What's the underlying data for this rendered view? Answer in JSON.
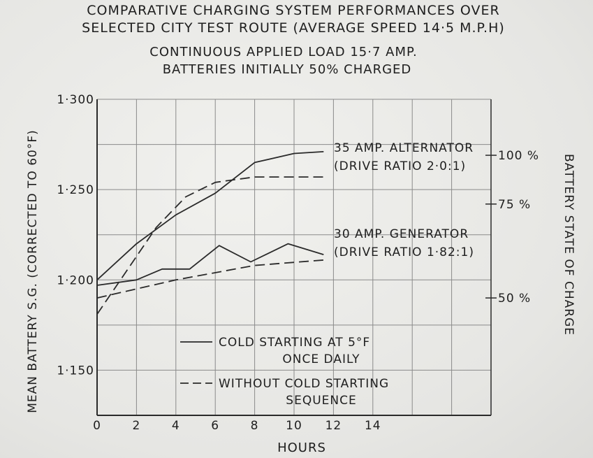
{
  "chart_data": {
    "type": "line",
    "title": [
      "COMPARATIVE CHARGING SYSTEM PERFORMANCES OVER",
      "SELECTED CITY TEST ROUTE (AVERAGE SPEED 14·5 M.P.H)"
    ],
    "subtitle": [
      "CONTINUOUS APPLIED LOAD 15·7 AMP.",
      "BATTERIES INITIALLY 50% CHARGED"
    ],
    "xlabel": "HOURS",
    "ylabel": "MEAN BATTERY S.G. (CORRECTED TO 60°F)",
    "y2label": "BATTERY STATE OF CHARGE",
    "xlim": [
      0,
      20
    ],
    "ylim": [
      1.125,
      1.3
    ],
    "x_ticks": [
      "0",
      "2",
      "4",
      "6",
      "8",
      "10",
      "12",
      "14"
    ],
    "x_tick_values": [
      0,
      2,
      4,
      6,
      8,
      10,
      12,
      14
    ],
    "y_ticks": [
      "1·300",
      "1·250",
      "1·200",
      "1·150"
    ],
    "y_tick_values": [
      1.3,
      1.25,
      1.2,
      1.15
    ],
    "y2_ticks": [
      "100 %",
      "75 %",
      "50 %"
    ],
    "y2_tick_values": [
      1.269,
      1.242,
      1.19
    ],
    "grid": true,
    "series": [
      {
        "x": [
          0,
          2,
          4,
          6,
          8,
          10,
          11.5
        ],
        "y": [
          1.2,
          1.22,
          1.236,
          1.248,
          1.265,
          1.27,
          1.271
        ],
        "style": "solid"
      },
      {
        "x": [
          0,
          1.5,
          3,
          4.5,
          6,
          8,
          10,
          11.5
        ],
        "y": [
          1.181,
          1.205,
          1.229,
          1.246,
          1.254,
          1.257,
          1.257,
          1.257
        ],
        "style": "dashed"
      },
      {
        "x": [
          0,
          2,
          3.3,
          4.7,
          6.2,
          7.8,
          9.7,
          11.5
        ],
        "y": [
          1.197,
          1.2,
          1.206,
          1.206,
          1.219,
          1.21,
          1.22,
          1.214
        ],
        "style": "solid"
      },
      {
        "x": [
          0,
          4,
          8,
          11.5
        ],
        "y": [
          1.19,
          1.2,
          1.208,
          1.211
        ],
        "style": "dashed"
      }
    ],
    "annotations": [
      {
        "lines": [
          "35 AMP. ALTERNATOR",
          "(DRIVE RATIO 2·0:1)"
        ]
      },
      {
        "lines": [
          "30 AMP. GENERATOR",
          "(DRIVE RATIO 1·82:1)"
        ]
      }
    ],
    "legend": {
      "position": "bottom-center",
      "entries": [
        {
          "style": "solid",
          "lines": [
            "COLD STARTING AT 5°F",
            "ONCE DAILY"
          ]
        },
        {
          "style": "dashed",
          "lines": [
            "WITHOUT COLD STARTING",
            "SEQUENCE"
          ]
        }
      ]
    }
  }
}
